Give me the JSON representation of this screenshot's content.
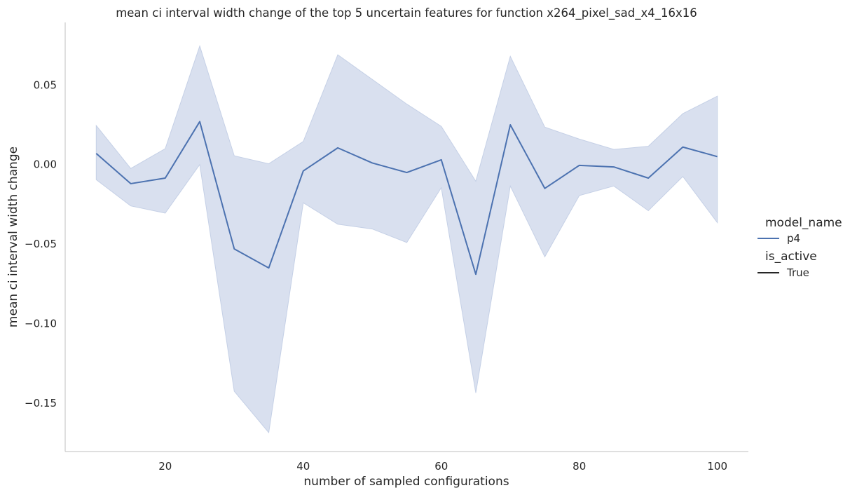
{
  "chart_data": {
    "type": "line",
    "title": "mean ci interval width change of the top 5 uncertain features for function x264_pixel_sad_x4_16x16",
    "xlabel": "number of sampled configurations",
    "ylabel": "mean ci interval width change",
    "xlim": [
      5.5,
      104.5
    ],
    "ylim": [
      -0.1685,
      0.077
    ],
    "xticks": [
      20,
      40,
      60,
      80,
      100
    ],
    "xtick_labels": [
      "20",
      "40",
      "60",
      "80",
      "100"
    ],
    "yticks": [
      0.05,
      0.0,
      -0.05,
      -0.1,
      -0.15
    ],
    "ytick_labels": [
      "0.05",
      "0.00",
      "−0.05",
      "−0.10",
      "−0.15"
    ],
    "grid": false,
    "legend_position": "right",
    "legend": {
      "hue_title": "model_name",
      "hue_label": "p4",
      "style_title": "is_active",
      "style_label": "True"
    },
    "x": [
      10,
      15,
      20,
      25,
      30,
      35,
      40,
      45,
      50,
      55,
      60,
      65,
      70,
      75,
      80,
      85,
      90,
      95,
      100
    ],
    "series": [
      {
        "name": "p4",
        "color": "#4c72b0",
        "band_color": "#c5d0e6",
        "values": [
          0.007,
          -0.012,
          -0.0085,
          0.027,
          -0.053,
          -0.065,
          -0.004,
          0.0105,
          0.001,
          -0.005,
          0.003,
          -0.069,
          0.025,
          -0.015,
          -0.0005,
          -0.0015,
          -0.0085,
          0.011,
          0.005
        ],
        "ci_upper": [
          0.0245,
          -0.0025,
          0.01,
          0.0745,
          0.0055,
          0.0005,
          0.0145,
          0.069,
          0.0535,
          0.038,
          0.024,
          -0.0105,
          0.068,
          0.0235,
          0.016,
          0.0095,
          0.0115,
          0.032,
          0.043
        ],
        "ci_lower": [
          -0.0095,
          -0.026,
          -0.0305,
          0.0,
          -0.1425,
          -0.1685,
          -0.024,
          -0.0375,
          -0.0405,
          -0.049,
          -0.0145,
          -0.1435,
          -0.0135,
          -0.058,
          -0.0195,
          -0.0135,
          -0.029,
          -0.0075,
          -0.0365
        ]
      }
    ]
  }
}
